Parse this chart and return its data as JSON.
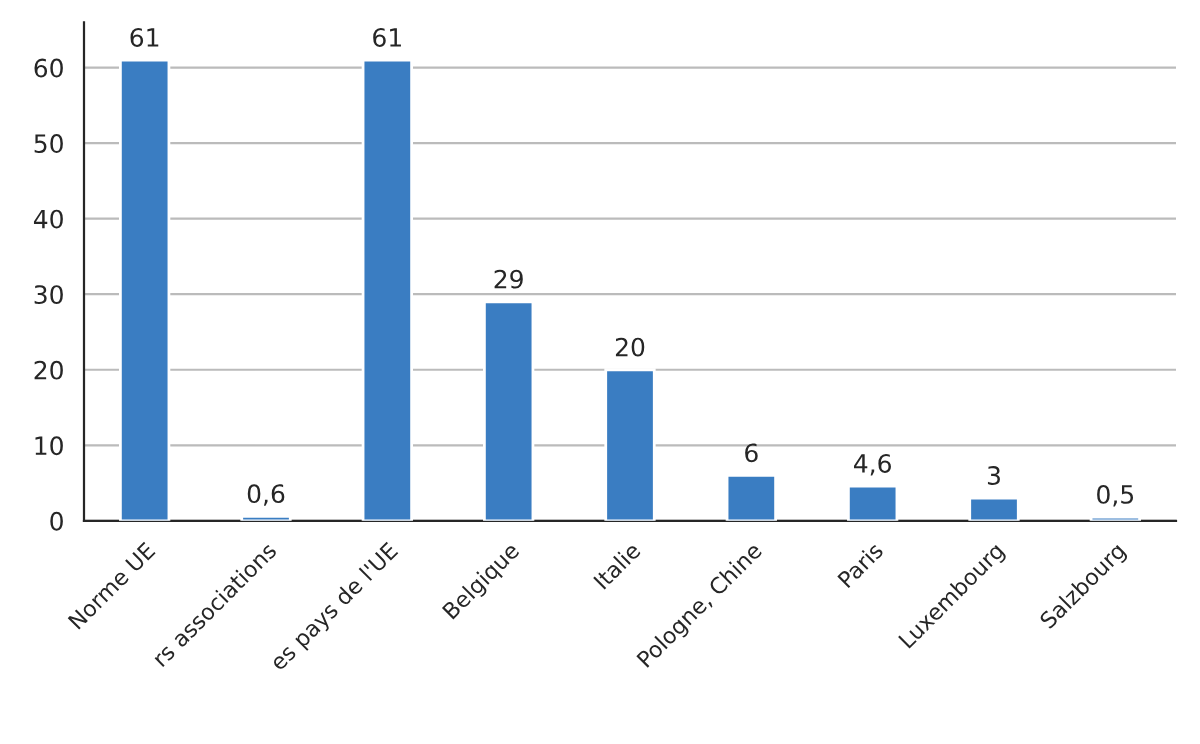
{
  "chart_data": {
    "type": "bar",
    "categories": [
      "Norme UE",
      "rs associations",
      "es pays de l'UE",
      "Belgique",
      "Italie",
      "Pologne, Chine",
      "Paris",
      "Luxembourg",
      "Salzbourg"
    ],
    "values": [
      61,
      0.6,
      61,
      29,
      20,
      6,
      4.6,
      3,
      0.5
    ],
    "value_labels": [
      "61",
      "0,6",
      "61",
      "29",
      "20",
      "6",
      "4,6",
      "3",
      "0,5"
    ],
    "color": "#3a7dc2",
    "ylim": [
      0,
      66
    ],
    "yticks": [
      0,
      10,
      20,
      30,
      40,
      50,
      60
    ],
    "grid": "y",
    "legend": false
  }
}
